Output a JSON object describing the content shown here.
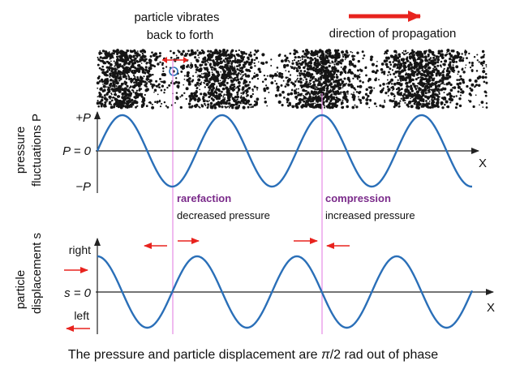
{
  "header": {
    "vibrates_line1": "particle vibrates",
    "vibrates_line2": "back to forth",
    "propagation": "direction of propagation"
  },
  "pressure_plot": {
    "ylabel_line1": "pressure",
    "ylabel_line2": "fluctuations P",
    "tick_plus": "+P",
    "tick_zero": "P = 0",
    "tick_minus": "−P",
    "xlabel": "X"
  },
  "displacement_plot": {
    "ylabel_line1": "particle",
    "ylabel_line2": "displacement  s",
    "tick_right": "right",
    "tick_zero": "s = 0",
    "tick_left": "left",
    "xlabel": "X"
  },
  "annotations": {
    "rarefaction_title": "rarefaction",
    "rarefaction_desc": "decreased pressure",
    "compression_title": "compression",
    "compression_desc": "increased  pressure"
  },
  "caption_part1": "The pressure and particle displacement are ",
  "caption_pi": "π",
  "caption_part2": "/2 rad out of phase",
  "colors": {
    "wave": "#2a6fb8",
    "marker_line": "#e68ce6",
    "arrow": "#e8231e",
    "label_accent": "#7a2a8a"
  }
}
